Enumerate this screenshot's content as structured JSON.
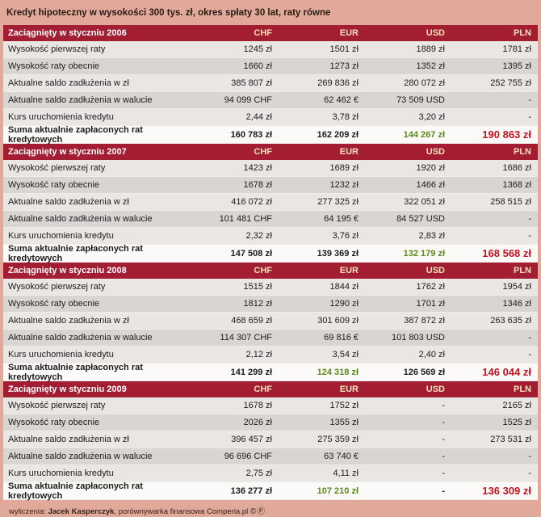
{
  "title": "Kredyt hipoteczny w wysokości 300 tys. zł, okres spłaty 30 lat, raty równe",
  "chart_data": {
    "type": "table",
    "columns": [
      "CHF",
      "EUR",
      "USD",
      "PLN"
    ],
    "row_labels": [
      "Wysokość pierwszej raty",
      "Wysokość raty obecnie",
      "Aktualne saldo zadłużenia w zł",
      "Aktualne saldo zadłużenia w walucie",
      "Kurs uruchomienia kredytu"
    ],
    "summary_label": "Suma aktualnie zapłaconych rat kredytowych",
    "sections": [
      {
        "header": "Zaciągnięty w styczniu 2006",
        "rows": [
          [
            "1245 zł",
            "1501 zł",
            "1889 zł",
            "1781 zł"
          ],
          [
            "1660 zł",
            "1273 zł",
            "1352 zł",
            "1395 zł"
          ],
          [
            "385 807 zł",
            "269 836 zł",
            "280 072 zł",
            "252 755 zł"
          ],
          [
            "94 099 CHF",
            "62 462 €",
            "73 509 USD",
            "-"
          ],
          [
            "2,44 zł",
            "3,78 zł",
            "3,20 zł",
            "-"
          ]
        ],
        "summary": [
          "160 783 zł",
          "162 209 zł",
          "144 267 zł",
          "190 863 zł"
        ],
        "best_index": 2
      },
      {
        "header": "Zaciągnięty w styczniu 2007",
        "rows": [
          [
            "1423 zł",
            "1689 zł",
            "1920 zł",
            "1686 zł"
          ],
          [
            "1678 zł",
            "1232 zł",
            "1466 zł",
            "1368 zł"
          ],
          [
            "416 072 zł",
            "277 325 zł",
            "322 051 zł",
            "258 515 zł"
          ],
          [
            "101 481 CHF",
            "64 195 €",
            "84 527 USD",
            "-"
          ],
          [
            "2,32 zł",
            "3,76 zł",
            "2,83 zł",
            "-"
          ]
        ],
        "summary": [
          "147 508 zł",
          "139 369 zł",
          "132 179 zł",
          "168 568 zł"
        ],
        "best_index": 2
      },
      {
        "header": "Zaciągnięty w styczniu 2008",
        "rows": [
          [
            "1515 zł",
            "1844 zł",
            "1762 zł",
            "1954 zł"
          ],
          [
            "1812 zł",
            "1290 zł",
            "1701 zł",
            "1346 zł"
          ],
          [
            "468 659 zł",
            "301 609 zł",
            "387 872 zł",
            "263 635 zł"
          ],
          [
            "114 307 CHF",
            "69 816 €",
            "101 803 USD",
            "-"
          ],
          [
            "2,12 zł",
            "3,54 zł",
            "2,40 zł",
            "-"
          ]
        ],
        "summary": [
          "141 299 zł",
          "124 318 zł",
          "126 569 zł",
          "146 044 zł"
        ],
        "best_index": 1
      },
      {
        "header": "Zaciągnięty w styczniu 2009",
        "rows": [
          [
            "1678 zł",
            "1752 zł",
            "-",
            "2165 zł"
          ],
          [
            "2026 zł",
            "1355 zł",
            "-",
            "1525 zł"
          ],
          [
            "396 457 zł",
            "275 359 zł",
            "-",
            "273 531 zł"
          ],
          [
            "96 696 CHF",
            "63 740 €",
            "-",
            "-"
          ],
          [
            "2,75 zł",
            "4,11 zł",
            "-",
            "-"
          ]
        ],
        "summary": [
          "136 277 zł",
          "107 210 zł",
          "-",
          "136 309 zł"
        ],
        "best_index": 1
      }
    ]
  },
  "footer": {
    "prefix": "wyliczenia: ",
    "author": "Jacek Kasperczyk",
    "suffix": ", porównywarka finansowa Comperia.pl",
    "marks": "©Ⓟ"
  },
  "colors": {
    "background": "#e0a99a",
    "section_header_bg": "#a31e33",
    "summary_pln_red": "#c3131f",
    "summary_best_green": "#5a8a1a"
  }
}
